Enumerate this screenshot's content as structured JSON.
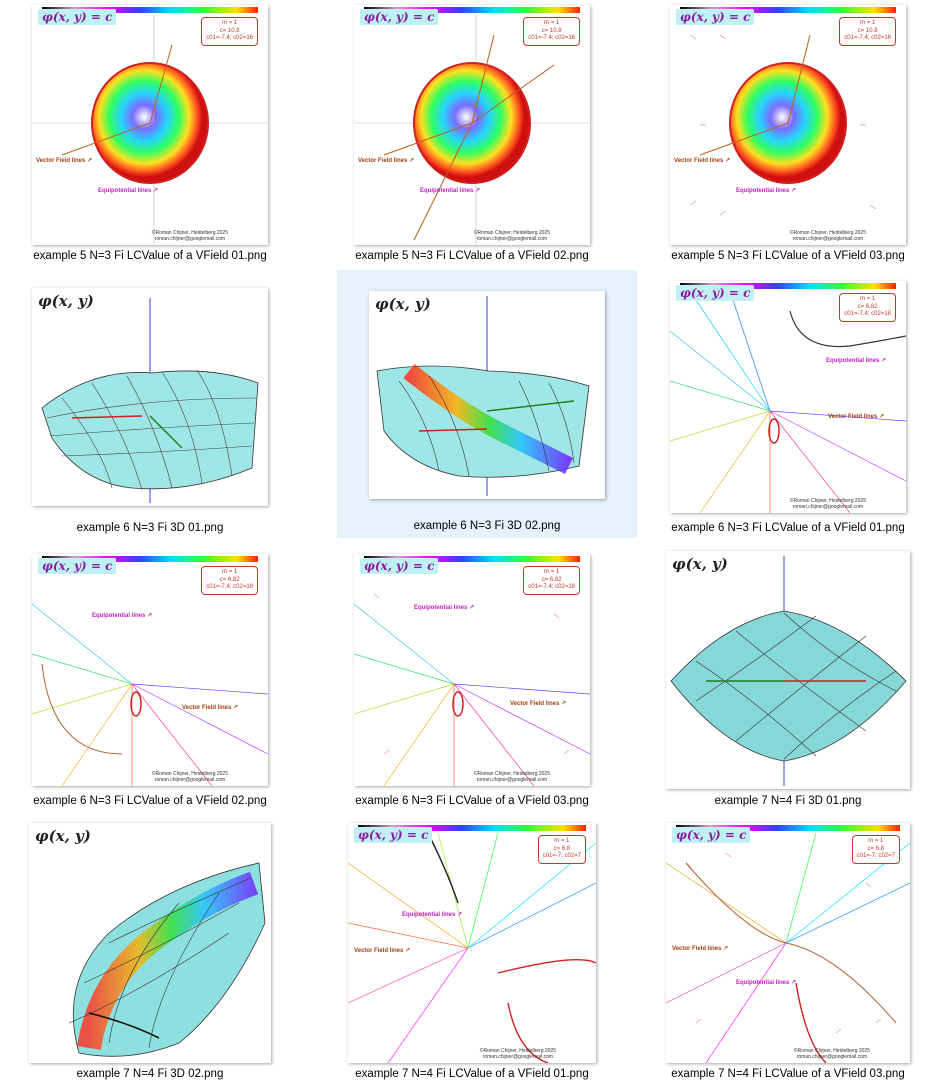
{
  "items": [
    {
      "caption": "example 5  N=3  Fi LCValue of a VField 01.png",
      "kind": "field2d",
      "title": "φ(x, y) = c",
      "badge_line1": "m = 1",
      "badge_line2": "c= 10.8",
      "badge_line3": "c01=-7.4; c02=16",
      "vf_label": "Vector Field lines ↗",
      "eq_label": "Equipotential lines ↗",
      "credit1": "©Roman Chijner, Heidelberg 2025",
      "credit2": "roman.chijner@googlemail.com"
    },
    {
      "caption": "example 5  N=3  Fi LCValue of a VField 02.png",
      "kind": "field2d",
      "title": "φ(x, y) = c",
      "badge_line1": "m = 1",
      "badge_line2": "c= 10.8",
      "badge_line3": "c01=-7.4; c02=16",
      "vf_label": "Vector Field lines ↗",
      "eq_label": "Equipotential lines ↗",
      "credit1": "©Roman Chijner, Heidelberg 2025",
      "credit2": "roman.chijner@googlemail.com"
    },
    {
      "caption": "example 5  N=3  Fi LCValue of a VField 03.png",
      "kind": "field2d",
      "title": "φ(x, y) = c",
      "badge_line1": "m = 1",
      "badge_line2": "c= 10.8",
      "badge_line3": "c01=-7.4; c02=16",
      "vf_label": "Vector Field lines ↗",
      "eq_label": "Equipotential lines ↗",
      "credit1": "©Roman Chijner, Heidelberg 2025",
      "credit2": "roman.chijner@googlemail.com"
    },
    {
      "caption": "example 6  N=3  Fi 3D 01.png",
      "kind": "surface3d",
      "title": "φ(x, y)"
    },
    {
      "caption": "example 6  N=3  Fi 3D 02.png",
      "kind": "surface3d",
      "title": "φ(x, y)"
    },
    {
      "caption": "example 6  N=3  Fi LCValue of a VField 01.png",
      "kind": "field2d",
      "title": "φ(x, y) = c",
      "badge_line1": "m = 1",
      "badge_line2": "c= 6.82",
      "badge_line3": "c01=-7.4; c02=18",
      "vf_label": "Vector Field lines ↗",
      "eq_label": "Equipotential lines ↗",
      "credit1": "©Roman Chijner, Heidelberg 2025",
      "credit2": "roman.chijner@googlemail.com"
    },
    {
      "caption": "example 6  N=3  Fi LCValue of a VField 02.png",
      "kind": "field2d",
      "title": "φ(x, y) = c",
      "badge_line1": "m = 1",
      "badge_line2": "c= 6.82",
      "badge_line3": "c01=-7.4; c02=18",
      "vf_label": "Vector Field lines ↗",
      "eq_label": "Equipotential lines ↗",
      "credit1": "©Roman Chijner, Heidelberg 2025",
      "credit2": "roman.chijner@googlemail.com"
    },
    {
      "caption": "example 6  N=3  Fi LCValue of a VField 03.png",
      "kind": "field2d",
      "title": "φ(x, y) = c",
      "badge_line1": "m = 1",
      "badge_line2": "c= 6.82",
      "badge_line3": "c01=-7.4; c02=18",
      "vf_label": "Vector Field lines ↗",
      "eq_label": "Equipotential lines ↗",
      "credit1": "©Roman Chijner, Heidelberg 2025",
      "credit2": "roman.chijner@googlemail.com"
    },
    {
      "caption": "example 7  N=4  Fi 3D 01.png",
      "kind": "surface3d",
      "title": "φ(x, y)"
    },
    {
      "caption": "example 7  N=4  Fi 3D 02.png",
      "kind": "surface3d",
      "title": "φ(x, y)"
    },
    {
      "caption": "example 7  N=4  Fi LCValue of a VField 01.png",
      "kind": "field2d",
      "title": "φ(x, y) = c",
      "badge_line1": "m = 1",
      "badge_line2": "c= 6.8",
      "badge_line3": "c01=-7; c02=7",
      "vf_label": "Vector Field lines ↗",
      "eq_label": "Equipotential lines ↗",
      "credit1": "©Roman Chijner, Heidelberg 2025",
      "credit2": "roman.chijner@googlemail.com"
    },
    {
      "caption": "example 7  N=4  Fi LCValue of a VField 03.png",
      "kind": "field2d",
      "title": "φ(x, y) = c",
      "badge_line1": "m = 1",
      "badge_line2": "c= 6.8",
      "badge_line3": "c01=-7; c02=7",
      "vf_label": "Vector Field lines ↗",
      "eq_label": "Equipotential lines ↗",
      "credit1": "©Roman Chijner, Heidelberg 2025",
      "credit2": "roman.chijner@googlemail.com"
    }
  ],
  "selected_index": 4,
  "colors": {
    "selection": "#e5f1fb",
    "caption": "#000000"
  }
}
